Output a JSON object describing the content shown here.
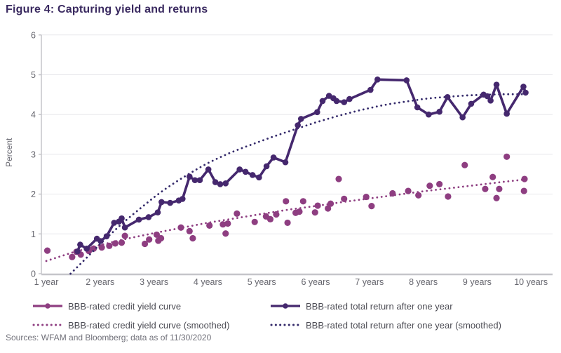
{
  "title": "Figure 4: Capturing yield and returns",
  "source": "Sources: WFAM and Bloomberg; data as of 11/30/2020",
  "colors": {
    "title": "#3a2a60",
    "yield": "#8e3e81",
    "total_return": "#45286e",
    "yield_smoothed": "#8e3e81",
    "total_return_smoothed": "#33296a",
    "gridline": "#e8e8eb",
    "axis_line": "#c5c5ca",
    "axis_text": "#66666e",
    "legend_text": "#4c4c54"
  },
  "legend": {
    "items": [
      {
        "label": "BBB-rated credit yield curve",
        "style": "solid-dot",
        "color": "#8e3e81"
      },
      {
        "label": "BBB-rated credit yield curve (smoothed)",
        "style": "dotted",
        "color": "#8e3e81"
      },
      {
        "label": "BBB-rated total return after one year",
        "style": "solid-dot",
        "color": "#45286e"
      },
      {
        "label": "BBB-rated total return after one year (smoothed)",
        "style": "dotted",
        "color": "#33296a"
      }
    ]
  },
  "chart_data": {
    "type": "line",
    "title": "Figure 4: Capturing yield and returns",
    "xlabel": "",
    "ylabel": "Percent",
    "xlim": [
      1,
      10.2
    ],
    "ylim": [
      0,
      6
    ],
    "y_ticks": [
      0,
      1,
      2,
      3,
      4,
      5,
      6
    ],
    "x_ticks": [
      {
        "year": 1,
        "label": "1 year"
      },
      {
        "year": 2,
        "label": "2 years"
      },
      {
        "year": 3,
        "label": "3 years"
      },
      {
        "year": 4,
        "label": "4 years"
      },
      {
        "year": 5,
        "label": "5 years"
      },
      {
        "year": 6,
        "label": "6 years"
      },
      {
        "year": 7,
        "label": "7 years"
      },
      {
        "year": 8,
        "label": "8 years"
      },
      {
        "year": 9,
        "label": "9 years"
      },
      {
        "year": 10,
        "label": "10 years"
      }
    ],
    "grid": true,
    "legend_position": "bottom",
    "series": [
      {
        "name": "BBB-rated credit yield curve",
        "style": "dots",
        "color": "#8e3e81",
        "points": [
          [
            1.02,
            0.58
          ],
          [
            1.48,
            0.42
          ],
          [
            1.56,
            0.55
          ],
          [
            1.64,
            0.48
          ],
          [
            1.79,
            0.57
          ],
          [
            1.88,
            0.63
          ],
          [
            2.03,
            0.66
          ],
          [
            2.17,
            0.7
          ],
          [
            2.28,
            0.76
          ],
          [
            2.4,
            0.78
          ],
          [
            2.46,
            0.95
          ],
          [
            2.83,
            0.75
          ],
          [
            2.91,
            0.86
          ],
          [
            3.05,
            0.98
          ],
          [
            3.08,
            0.83
          ],
          [
            3.13,
            0.89
          ],
          [
            3.5,
            1.16
          ],
          [
            3.66,
            1.07
          ],
          [
            3.72,
            0.89
          ],
          [
            4.03,
            1.21
          ],
          [
            4.28,
            1.24
          ],
          [
            4.33,
            1.01
          ],
          [
            4.37,
            1.26
          ],
          [
            4.54,
            1.51
          ],
          [
            4.87,
            1.3
          ],
          [
            5.08,
            1.44
          ],
          [
            5.16,
            1.37
          ],
          [
            5.27,
            1.49
          ],
          [
            5.45,
            1.82
          ],
          [
            5.48,
            1.28
          ],
          [
            5.63,
            1.53
          ],
          [
            5.7,
            1.56
          ],
          [
            5.77,
            1.82
          ],
          [
            5.99,
            1.54
          ],
          [
            6.04,
            1.71
          ],
          [
            6.23,
            1.64
          ],
          [
            6.28,
            1.76
          ],
          [
            6.43,
            2.38
          ],
          [
            6.53,
            1.88
          ],
          [
            6.94,
            1.93
          ],
          [
            7.04,
            1.7
          ],
          [
            7.43,
            2.02
          ],
          [
            7.72,
            2.08
          ],
          [
            7.91,
            1.97
          ],
          [
            8.12,
            2.21
          ],
          [
            8.3,
            2.25
          ],
          [
            8.46,
            1.94
          ],
          [
            8.77,
            2.73
          ],
          [
            9.15,
            2.13
          ],
          [
            9.29,
            2.43
          ],
          [
            9.36,
            1.9
          ],
          [
            9.41,
            2.13
          ],
          [
            9.55,
            2.94
          ],
          [
            9.87,
            2.08
          ],
          [
            9.88,
            2.38
          ]
        ]
      },
      {
        "name": "BBB-rated credit yield curve (smoothed)",
        "style": "dotted",
        "color": "#8e3e81",
        "points": [
          [
            1.0,
            0.32
          ],
          [
            1.5,
            0.54
          ],
          [
            2,
            0.72
          ],
          [
            2.5,
            0.88
          ],
          [
            3,
            1.02
          ],
          [
            3.5,
            1.15
          ],
          [
            4,
            1.28
          ],
          [
            4.5,
            1.39
          ],
          [
            5,
            1.5
          ],
          [
            5.5,
            1.61
          ],
          [
            6,
            1.7
          ],
          [
            6.5,
            1.8
          ],
          [
            7,
            1.89
          ],
          [
            7.5,
            1.98
          ],
          [
            8,
            2.07
          ],
          [
            8.5,
            2.15
          ],
          [
            9,
            2.23
          ],
          [
            9.5,
            2.31
          ],
          [
            9.97,
            2.38
          ]
        ]
      },
      {
        "name": "BBB-rated total return after one year (smoothed)",
        "style": "dotted",
        "color": "#33296a",
        "points": [
          [
            1.45,
            0.0
          ],
          [
            1.6,
            0.2
          ],
          [
            1.8,
            0.47
          ],
          [
            2,
            0.75
          ],
          [
            2.2,
            1.0
          ],
          [
            2.4,
            1.25
          ],
          [
            2.6,
            1.48
          ],
          [
            2.8,
            1.7
          ],
          [
            3,
            1.92
          ],
          [
            3.2,
            2.12
          ],
          [
            3.4,
            2.3
          ],
          [
            3.6,
            2.47
          ],
          [
            3.8,
            2.63
          ],
          [
            4,
            2.78
          ],
          [
            4.2,
            2.91
          ],
          [
            4.4,
            3.03
          ],
          [
            4.6,
            3.14
          ],
          [
            4.8,
            3.24
          ],
          [
            5,
            3.34
          ],
          [
            5.2,
            3.44
          ],
          [
            5.4,
            3.53
          ],
          [
            5.6,
            3.62
          ],
          [
            5.8,
            3.71
          ],
          [
            6,
            3.8
          ],
          [
            6.2,
            3.88
          ],
          [
            6.4,
            3.96
          ],
          [
            6.6,
            4.03
          ],
          [
            6.8,
            4.1
          ],
          [
            7,
            4.16
          ],
          [
            7.2,
            4.22
          ],
          [
            7.4,
            4.27
          ],
          [
            7.6,
            4.31
          ],
          [
            7.8,
            4.35
          ],
          [
            8,
            4.39
          ],
          [
            8.2,
            4.42
          ],
          [
            8.4,
            4.44
          ],
          [
            8.6,
            4.46
          ],
          [
            8.8,
            4.48
          ],
          [
            9,
            4.49
          ],
          [
            9.2,
            4.5
          ],
          [
            9.5,
            4.51
          ],
          [
            9.97,
            4.51
          ]
        ]
      },
      {
        "name": "BBB-rated total return after one year",
        "style": "line-dots",
        "color": "#45286e",
        "points": [
          [
            1.58,
            0.56
          ],
          [
            1.63,
            0.73
          ],
          [
            1.75,
            0.63
          ],
          [
            1.94,
            0.88
          ],
          [
            2.01,
            0.82
          ],
          [
            2.12,
            0.94
          ],
          [
            2.26,
            1.28
          ],
          [
            2.35,
            1.31
          ],
          [
            2.4,
            1.39
          ],
          [
            2.46,
            1.16
          ],
          [
            2.72,
            1.36
          ],
          [
            2.9,
            1.42
          ],
          [
            3.07,
            1.54
          ],
          [
            3.14,
            1.8
          ],
          [
            3.3,
            1.78
          ],
          [
            3.46,
            1.84
          ],
          [
            3.53,
            1.88
          ],
          [
            3.66,
            2.44
          ],
          [
            3.76,
            2.35
          ],
          [
            3.85,
            2.35
          ],
          [
            4.01,
            2.62
          ],
          [
            4.14,
            2.3
          ],
          [
            4.23,
            2.25
          ],
          [
            4.33,
            2.27
          ],
          [
            4.59,
            2.62
          ],
          [
            4.7,
            2.56
          ],
          [
            4.83,
            2.48
          ],
          [
            4.95,
            2.42
          ],
          [
            5.09,
            2.7
          ],
          [
            5.22,
            2.92
          ],
          [
            5.44,
            2.8
          ],
          [
            5.67,
            3.73
          ],
          [
            5.73,
            3.89
          ],
          [
            6.03,
            4.06
          ],
          [
            6.13,
            4.34
          ],
          [
            6.25,
            4.47
          ],
          [
            6.33,
            4.41
          ],
          [
            6.39,
            4.34
          ],
          [
            6.53,
            4.31
          ],
          [
            6.63,
            4.39
          ],
          [
            7.02,
            4.62
          ],
          [
            7.15,
            4.88
          ],
          [
            7.69,
            4.86
          ],
          [
            7.89,
            4.18
          ],
          [
            8.1,
            4.0
          ],
          [
            8.3,
            4.07
          ],
          [
            8.45,
            4.44
          ],
          [
            8.73,
            3.93
          ],
          [
            8.89,
            4.27
          ],
          [
            9.12,
            4.5
          ],
          [
            9.19,
            4.46
          ],
          [
            9.25,
            4.35
          ],
          [
            9.36,
            4.75
          ],
          [
            9.55,
            4.02
          ],
          [
            9.86,
            4.7
          ],
          [
            9.9,
            4.55
          ]
        ]
      }
    ]
  }
}
